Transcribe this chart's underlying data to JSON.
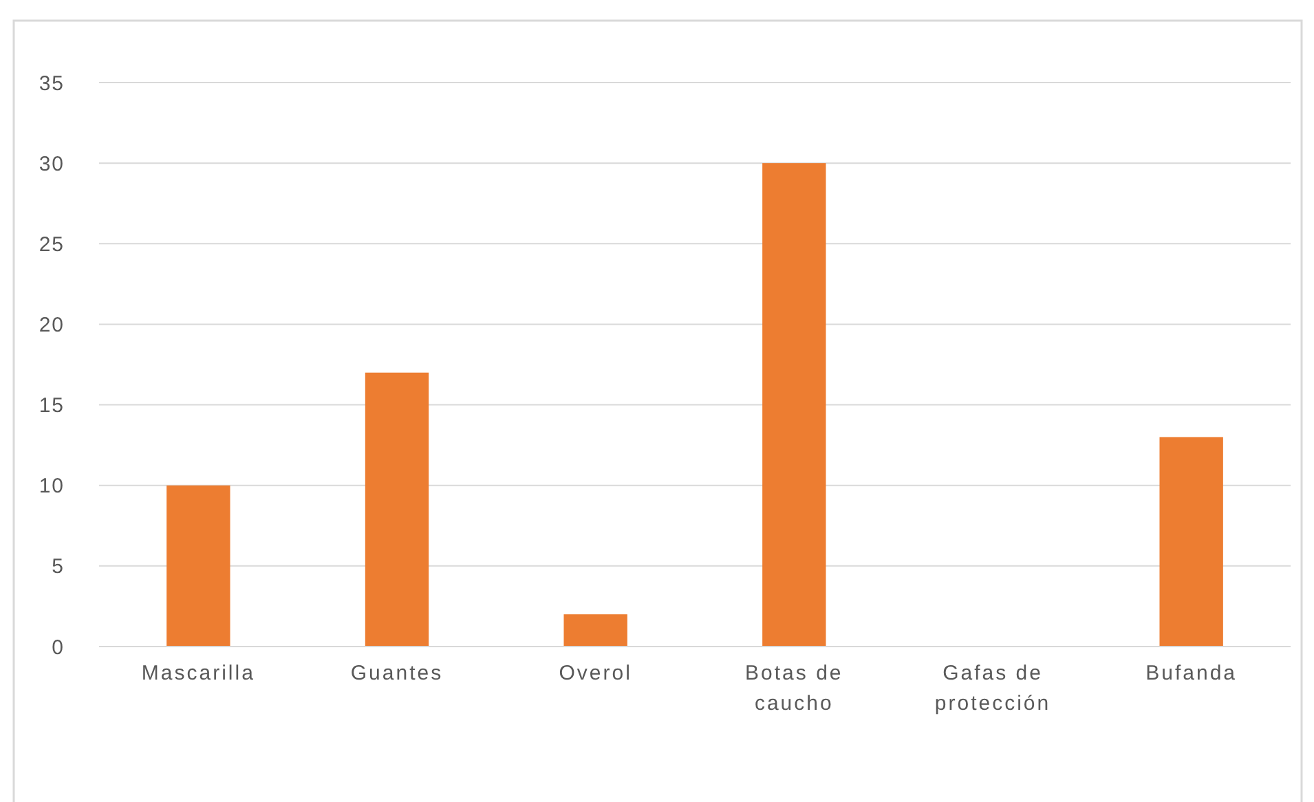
{
  "chart_data": {
    "type": "bar",
    "categories": [
      "Mascarilla",
      "Guantes",
      "Overol",
      "Botas de caucho",
      "Gafas de protección",
      "Bufanda"
    ],
    "values": [
      10,
      17,
      2,
      30,
      0,
      13
    ],
    "color": "#ed7d31",
    "ylim": [
      0,
      35
    ],
    "yticks": [
      0,
      5,
      10,
      15,
      20,
      25,
      30,
      35
    ],
    "grid": "y"
  }
}
